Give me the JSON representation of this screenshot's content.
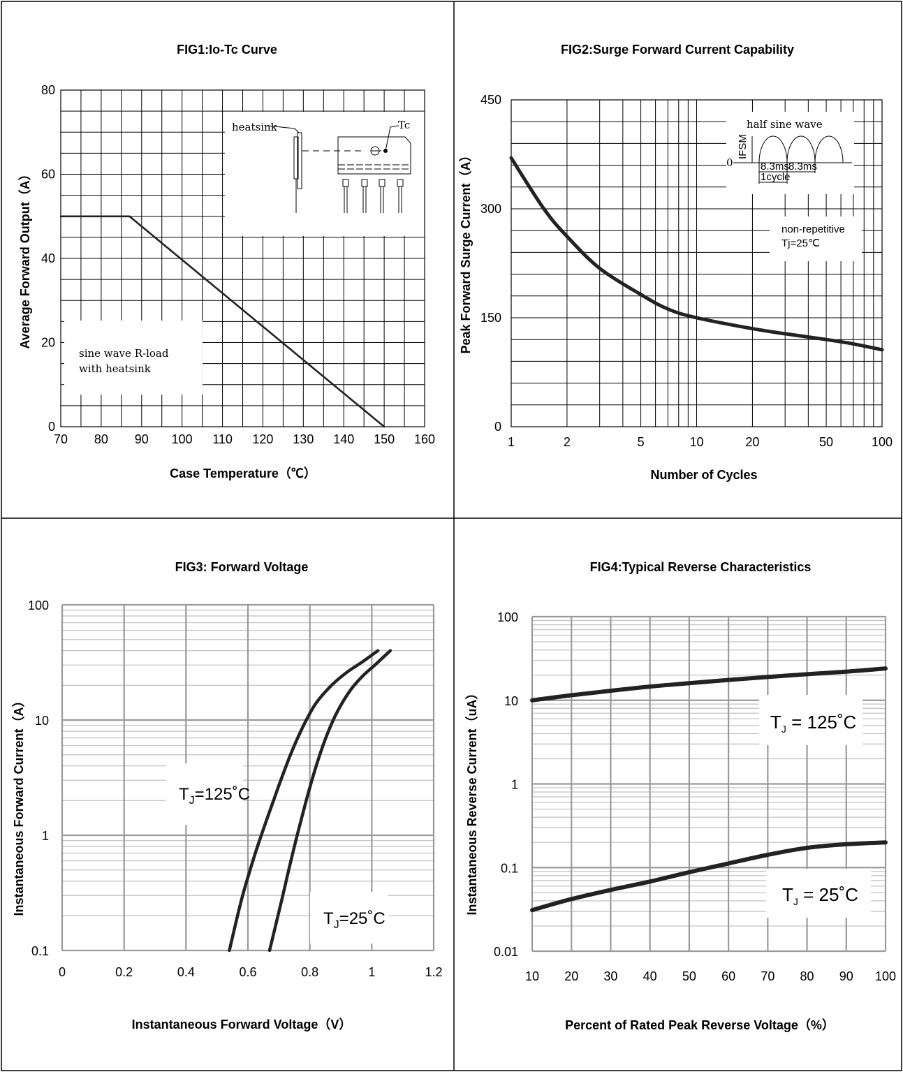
{
  "chart_data": [
    {
      "id": "fig1",
      "type": "line",
      "title": "FIG1:Io-Tc Curve",
      "xlabel": "Case Temperature（℃）",
      "ylabel": "Average Forward Output（A）",
      "xlim": [
        70,
        160
      ],
      "ylim": [
        0,
        80
      ],
      "xticks": [
        70,
        80,
        90,
        100,
        110,
        120,
        130,
        140,
        150,
        160
      ],
      "yticks": [
        0,
        20,
        40,
        60,
        80
      ],
      "grid": true,
      "series": [
        {
          "x": [
            70,
            87,
            150
          ],
          "y": [
            50,
            50,
            0
          ]
        }
      ],
      "annotations": [
        "sine wave R-load",
        "with heatsink",
        "heatsink",
        "Tc"
      ]
    },
    {
      "id": "fig2",
      "type": "line",
      "title": "FIG2:Surge Forward Current Capability",
      "xlabel": "Number of Cycles",
      "ylabel": "Peak Forward Surge Current（A）",
      "xscale": "log",
      "xlim": [
        1,
        100
      ],
      "ylim": [
        0,
        450
      ],
      "xticks": [
        1,
        2,
        5,
        10,
        20,
        50,
        100
      ],
      "yticks": [
        0,
        150,
        300,
        450
      ],
      "grid": true,
      "series": [
        {
          "x": [
            1,
            1.5,
            2,
            3,
            5,
            7,
            10,
            20,
            30,
            50,
            70,
            100
          ],
          "y": [
            370,
            300,
            262,
            218,
            182,
            162,
            150,
            135,
            128,
            120,
            114,
            106
          ]
        }
      ],
      "annotations": [
        "half sine wave",
        "IFSM",
        "0",
        "8.3ms",
        "8.3ms",
        "1cycle",
        "non-repetitive",
        "Tj=25℃"
      ]
    },
    {
      "id": "fig3",
      "type": "line",
      "title": "FIG3: Forward Voltage",
      "xlabel": "Instantaneous Forward Voltage（V）",
      "ylabel": "Instantaneous Forward Current（A）",
      "yscale": "log",
      "xlim": [
        0,
        1.2
      ],
      "ylim": [
        0.1,
        100
      ],
      "xticks": [
        "0",
        "0.2",
        "0.4",
        "0.6",
        "0.8",
        "1",
        "1.2"
      ],
      "yticks": [
        "0.1",
        "1",
        "10",
        "100"
      ],
      "grid": true,
      "series": [
        {
          "name": "TJ=125˚C",
          "x": [
            0.54,
            0.58,
            0.62,
            0.66,
            0.7,
            0.74,
            0.78,
            0.82,
            0.87,
            0.92,
            0.97,
            1.02
          ],
          "y": [
            0.1,
            0.28,
            0.65,
            1.35,
            2.7,
            5.2,
            9.0,
            14.0,
            20.0,
            26.0,
            32.0,
            40.0
          ]
        },
        {
          "name": "TJ=25˚C",
          "x": [
            0.67,
            0.71,
            0.74,
            0.77,
            0.8,
            0.83,
            0.86,
            0.89,
            0.93,
            0.97,
            1.01,
            1.06
          ],
          "y": [
            0.1,
            0.28,
            0.62,
            1.3,
            2.6,
            4.8,
            8.0,
            12.0,
            18.0,
            24.0,
            30.0,
            40.0
          ]
        }
      ]
    },
    {
      "id": "fig4",
      "type": "line",
      "title": "FIG4:Typical Reverse Characteristics",
      "xlabel": "Percent of Rated Peak Reverse Voltage（%）",
      "ylabel": "Instantaneous Reverse Current（uA）",
      "yscale": "log",
      "xlim": [
        10,
        100
      ],
      "ylim": [
        0.01,
        100
      ],
      "xticks": [
        10,
        20,
        30,
        40,
        50,
        60,
        70,
        80,
        90,
        100
      ],
      "yticks": [
        "0.01",
        "0.1",
        "1",
        "10",
        "100"
      ],
      "grid": true,
      "series": [
        {
          "name": "T⁁ = 125˚C",
          "x": [
            10,
            20,
            30,
            40,
            50,
            60,
            70,
            80,
            90,
            100
          ],
          "y": [
            10,
            11.5,
            13,
            14.6,
            16,
            17.5,
            19,
            20.5,
            22,
            24
          ]
        },
        {
          "name": "T⁁ = 25˚C",
          "x": [
            10,
            20,
            30,
            40,
            50,
            60,
            70,
            80,
            90,
            100
          ],
          "y": [
            0.031,
            0.042,
            0.054,
            0.068,
            0.088,
            0.112,
            0.142,
            0.172,
            0.19,
            0.2
          ]
        }
      ]
    }
  ],
  "labels": {
    "fig3_125": {
      "main": "T",
      "sub": "J",
      "rest": "=125˚C"
    },
    "fig3_25": {
      "main": "T",
      "sub": "J",
      "rest": "=25˚C"
    },
    "fig4_125": {
      "main": "T",
      "sub": "J",
      "rest": " = 125˚C"
    },
    "fig4_25": {
      "main": "T",
      "sub": "J",
      "rest": " = 25˚C"
    }
  }
}
